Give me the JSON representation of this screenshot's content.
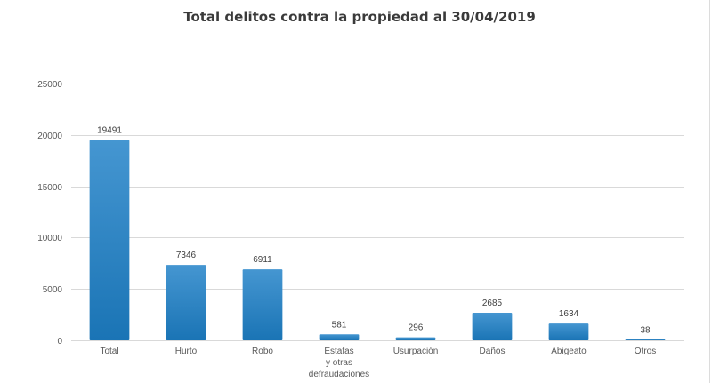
{
  "chart_data": {
    "type": "bar",
    "title": "Total delitos contra la propiedad al 30/04/2019",
    "xlabel": "",
    "ylabel": "",
    "ylim": [
      0,
      25000
    ],
    "yticks": [
      0,
      5000,
      10000,
      15000,
      20000,
      25000
    ],
    "ytick_labels": [
      "0",
      "5000",
      "10000",
      "15000",
      "20000",
      "25000"
    ],
    "grid": true,
    "legend": "none",
    "categories": [
      [
        "Total"
      ],
      [
        "Hurto"
      ],
      [
        "Robo"
      ],
      [
        "Estafas",
        "y otras",
        "defraudaciones"
      ],
      [
        "Usurpación"
      ],
      [
        "Daños"
      ],
      [
        "Abigeato"
      ],
      [
        "Otros"
      ]
    ],
    "values": [
      19491,
      7346,
      6911,
      581,
      296,
      2685,
      1634,
      38
    ],
    "data_labels": [
      "19491",
      "7346",
      "6911",
      "581",
      "296",
      "2685",
      "1634",
      "38"
    ],
    "colors": {
      "bar_top": "#4596d1",
      "bar_bottom": "#1a74b5"
    }
  }
}
